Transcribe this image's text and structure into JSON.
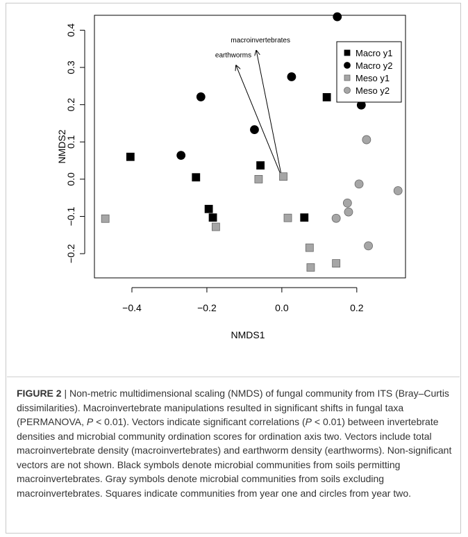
{
  "chart_data": {
    "type": "scatter",
    "xlabel": "NMDS1",
    "ylabel": "NMDS2",
    "xlim": [
      -0.5,
      0.33
    ],
    "ylim": [
      -0.265,
      0.44
    ],
    "x_ticks": [
      -0.4,
      -0.2,
      0.0,
      0.2
    ],
    "x_tick_labels": [
      "−0.4",
      "−0.2",
      "0.0",
      "0.2"
    ],
    "y_ticks": [
      -0.2,
      -0.1,
      0.0,
      0.1,
      0.2,
      0.3,
      0.4
    ],
    "y_tick_labels": [
      "−0.2",
      "−0.1",
      "0.0",
      "0.1",
      "0.2",
      "0.3",
      "0.4"
    ],
    "grid": false,
    "legend_position": "top-right",
    "series": [
      {
        "name": "Macro y1",
        "marker": "square",
        "color": "#000000",
        "points": [
          [
            -0.404,
            0.06
          ],
          [
            -0.229,
            0.005
          ],
          [
            -0.195,
            -0.08
          ],
          [
            -0.184,
            -0.103
          ],
          [
            -0.057,
            0.037
          ],
          [
            0.06,
            -0.103
          ],
          [
            0.12,
            0.22
          ]
        ]
      },
      {
        "name": "Macro y2",
        "marker": "circle",
        "color": "#000000",
        "points": [
          [
            -0.269,
            0.064
          ],
          [
            -0.216,
            0.221
          ],
          [
            -0.073,
            0.133
          ],
          [
            0.026,
            0.275
          ],
          [
            0.148,
            0.436
          ],
          [
            0.212,
            0.199
          ]
        ]
      },
      {
        "name": "Meso y1",
        "marker": "square",
        "color": "#a6a6a6",
        "points": [
          [
            -0.471,
            -0.106
          ],
          [
            -0.176,
            -0.128
          ],
          [
            -0.062,
            0.0
          ],
          [
            0.004,
            0.007
          ],
          [
            0.016,
            -0.104
          ],
          [
            0.074,
            -0.184
          ],
          [
            0.077,
            -0.237
          ],
          [
            0.145,
            -0.226
          ]
        ]
      },
      {
        "name": "Meso y2",
        "marker": "circle",
        "color": "#a6a6a6",
        "points": [
          [
            0.145,
            -0.105
          ],
          [
            0.175,
            -0.064
          ],
          [
            0.178,
            -0.088
          ],
          [
            0.206,
            -0.013
          ],
          [
            0.226,
            0.106
          ],
          [
            0.231,
            -0.179
          ],
          [
            0.31,
            -0.031
          ]
        ]
      }
    ],
    "vectors": [
      {
        "label": "macroinvertebrates",
        "from": [
          0.0,
          0.005
        ],
        "to": [
          -0.068,
          0.345
        ]
      },
      {
        "label": "earthworms",
        "from": [
          0.0,
          0.005
        ],
        "to": [
          -0.122,
          0.305
        ]
      }
    ]
  },
  "caption": {
    "label": "FIGURE 2",
    "bar": " | ",
    "text1": "Non-metric multidimensional scaling (NMDS) of fungal community from ITS (Bray–Curtis dissimilarities). Macroinvertebrate manipulations resulted in significant shifts in fungal taxa (PERMANOVA, ",
    "p1": "P",
    "text2": " < 0.01). Vectors indicate significant correlations (",
    "p2": "P",
    "text3": " < 0.01) between invertebrate densities and microbial community ordination scores for ordination axis two. Vectors include total macroinvertebrate density (macroinvertebrates) and earthworm density (earthworms). Non-significant vectors are not shown. Black symbols denote microbial communities from soils permitting macroinvertebrates. Gray symbols denote microbial communities from soils excluding macroinvertebrates. Squares indicate communities from year one and circles from year two."
  }
}
